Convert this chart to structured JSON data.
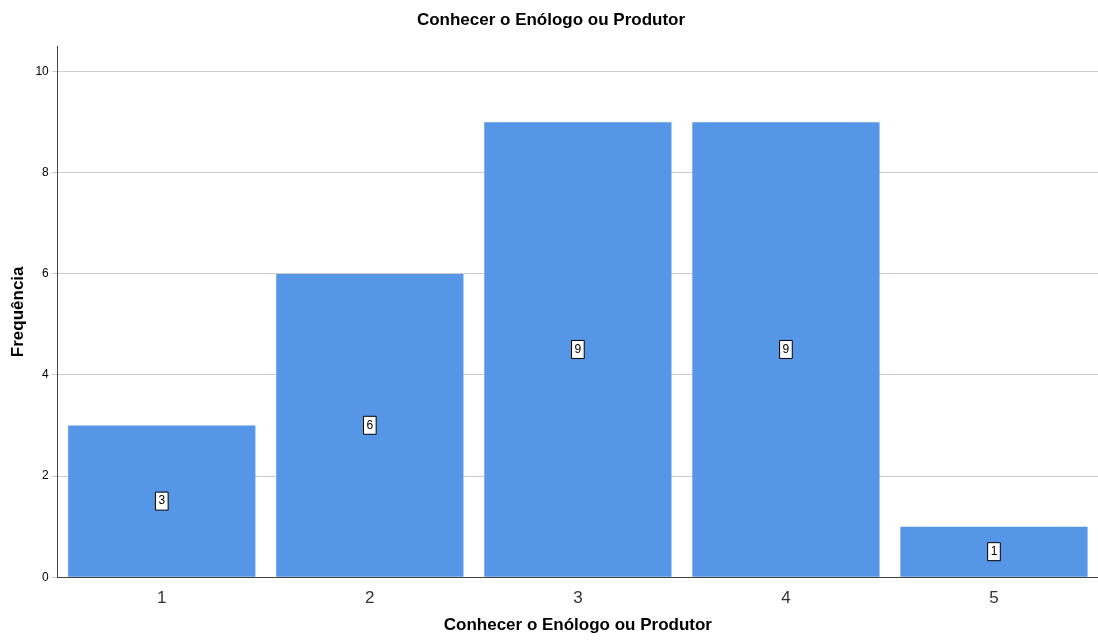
{
  "chart_data": {
    "type": "bar",
    "title": "Conhecer o Enólogo ou Produtor",
    "xlabel": "Conhecer o Enólogo ou Produtor",
    "ylabel": "Frequência",
    "categories": [
      "1",
      "2",
      "3",
      "4",
      "5"
    ],
    "values": [
      3,
      6,
      9,
      9,
      1
    ],
    "color": "#5596e6",
    "ylim": [
      0,
      10.5
    ],
    "yticks": [
      0,
      2,
      4,
      6,
      8,
      10
    ],
    "grid": "y",
    "data_labels": true
  }
}
